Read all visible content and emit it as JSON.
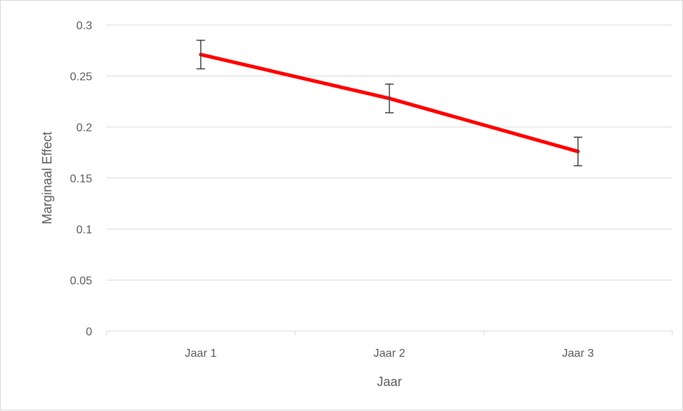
{
  "chart_data": {
    "type": "line",
    "categories": [
      "Jaar 1",
      "Jaar 2",
      "Jaar 3"
    ],
    "series": [
      {
        "values": [
          0.271,
          0.228,
          0.176
        ],
        "error_lower": [
          0.257,
          0.214,
          0.162
        ],
        "error_upper": [
          0.285,
          0.242,
          0.19
        ],
        "color": "#ff0000"
      }
    ],
    "xlabel": "Jaar",
    "ylabel": "Marginaal Effect",
    "ylim": [
      0,
      0.3
    ],
    "yticks": [
      "0",
      "0.05",
      "0.1",
      "0.15",
      "0.2",
      "0.25",
      "0.3"
    ],
    "grid": true,
    "legend": "none"
  }
}
